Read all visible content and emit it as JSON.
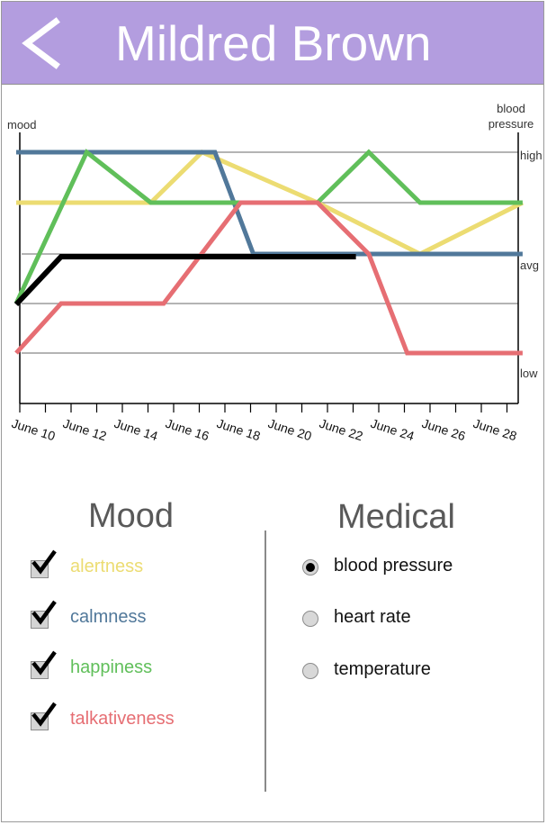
{
  "header": {
    "title": "Mildred Brown",
    "back_icon": "chevron-left-icon"
  },
  "chart_data": {
    "type": "line",
    "x": [
      "June 10",
      "June 11",
      "June 12",
      "June 13",
      "June 14",
      "June 15",
      "June 16",
      "June 17",
      "June 18",
      "June 19",
      "June 20",
      "June 21",
      "June 22",
      "June 23",
      "June 24",
      "June 25",
      "June 26",
      "June 27",
      "June 28",
      "June 29"
    ],
    "xticklabels": [
      "June 10",
      "June 12",
      "June 14",
      "June 16",
      "June 18",
      "June 20",
      "June 22",
      "June 24",
      "June 26",
      "June 28"
    ],
    "ylabel_left": "mood",
    "ylabel_right": "blood pressure",
    "right_ticks": [
      "high",
      "avg",
      "low"
    ],
    "grid": true,
    "series": [
      {
        "name": "alertness",
        "color": "#ecdc72",
        "axis": "mood",
        "points": [
          [
            0,
            3
          ],
          [
            2.75,
            3
          ],
          [
            5.25,
            3
          ],
          [
            7.25,
            4
          ],
          [
            11.75,
            3
          ],
          [
            15.75,
            2
          ],
          [
            19.75,
            3
          ]
        ]
      },
      {
        "name": "calmness",
        "color": "#51789a",
        "axis": "mood",
        "points": [
          [
            0,
            4
          ],
          [
            3.25,
            4
          ],
          [
            7.25,
            4
          ],
          [
            7.75,
            4
          ],
          [
            9.25,
            2
          ],
          [
            13.25,
            2
          ],
          [
            19.75,
            2
          ]
        ]
      },
      {
        "name": "happiness",
        "color": "#60bf5a",
        "axis": "mood",
        "points": [
          [
            0,
            1
          ],
          [
            2.75,
            4
          ],
          [
            5.25,
            3
          ],
          [
            11.75,
            3
          ],
          [
            13.75,
            4
          ],
          [
            15.75,
            3
          ],
          [
            19.75,
            3
          ]
        ]
      },
      {
        "name": "talkativeness",
        "color": "#e66e73",
        "axis": "mood",
        "points": [
          [
            0,
            0
          ],
          [
            1.75,
            1
          ],
          [
            5.75,
            1
          ],
          [
            8.75,
            3
          ],
          [
            11.75,
            3
          ],
          [
            13.75,
            2
          ],
          [
            15.25,
            0
          ],
          [
            19.75,
            0
          ]
        ]
      },
      {
        "name": "blood pressure",
        "color": "#000000",
        "axis": "bp",
        "points": [
          [
            0,
            1
          ],
          [
            1.75,
            2
          ],
          [
            13.25,
            2
          ],
          [
            15.25,
            3.3
          ],
          [
            19.75,
            3.3
          ]
        ]
      }
    ]
  },
  "mood_panel": {
    "title": "Mood",
    "items": [
      {
        "label": "alertness",
        "color": "#ecdc72",
        "checked": true
      },
      {
        "label": "calmness",
        "color": "#51789a",
        "checked": true
      },
      {
        "label": "happiness",
        "color": "#60bf5a",
        "checked": true
      },
      {
        "label": "talkativeness",
        "color": "#e66e73",
        "checked": true
      }
    ]
  },
  "medical_panel": {
    "title": "Medical",
    "options": [
      {
        "label": "blood pressure",
        "selected": true
      },
      {
        "label": "heart rate",
        "selected": false
      },
      {
        "label": "temperature",
        "selected": false
      }
    ]
  }
}
